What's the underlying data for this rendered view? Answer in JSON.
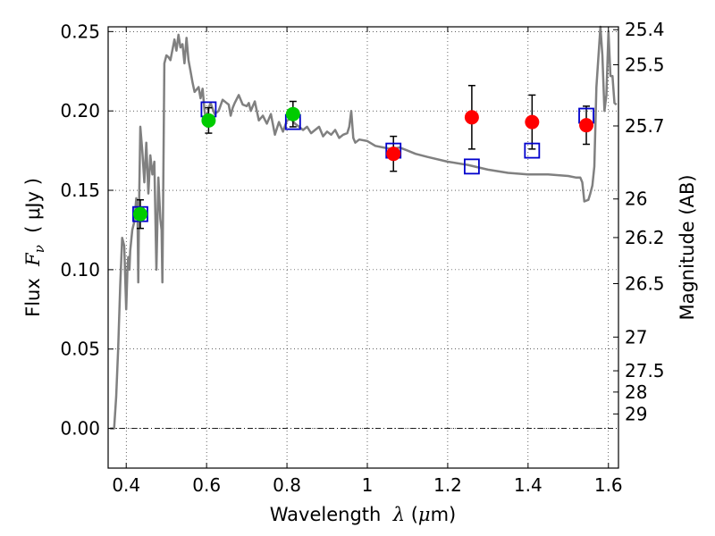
{
  "chart_data": {
    "type": "scatter",
    "xlabel": {
      "text": "Wavelength",
      "symbol": "λ",
      "unit_open": "(",
      "unit_mu": "μ",
      "unit_rest": "m)"
    },
    "ylabel": {
      "text": "Flux",
      "symbol": "F",
      "sub": "ν",
      "unit": "( μJy )"
    },
    "y2label": "Magnitude (AB)",
    "xlim": [
      0.355,
      1.625
    ],
    "ylim": [
      -0.025,
      0.253
    ],
    "grid": true,
    "xticks": [
      {
        "value": 0.4,
        "label": "0.4"
      },
      {
        "value": 0.6,
        "label": "0.6"
      },
      {
        "value": 0.8,
        "label": "0.8"
      },
      {
        "value": 1.0,
        "label": "1"
      },
      {
        "value": 1.2,
        "label": "1.2"
      },
      {
        "value": 1.4,
        "label": "1.4"
      },
      {
        "value": 1.6,
        "label": "1.6"
      }
    ],
    "yticks": [
      {
        "value": 0.0,
        "label": "0.00"
      },
      {
        "value": 0.05,
        "label": "0.05"
      },
      {
        "value": 0.1,
        "label": "0.10"
      },
      {
        "value": 0.15,
        "label": "0.15"
      },
      {
        "value": 0.2,
        "label": "0.20"
      },
      {
        "value": 0.25,
        "label": "0.25"
      }
    ],
    "y2ticks": [
      {
        "value": 25.4,
        "label": "25.4"
      },
      {
        "value": 25.5,
        "label": "25.5"
      },
      {
        "value": 25.7,
        "label": "25.7"
      },
      {
        "value": 26,
        "label": "26"
      },
      {
        "value": 26.2,
        "label": "26.2"
      },
      {
        "value": 26.5,
        "label": "26.5"
      },
      {
        "value": 27,
        "label": "27"
      },
      {
        "value": 27.5,
        "label": "27.5"
      },
      {
        "value": 28,
        "label": "28"
      },
      {
        "value": 29,
        "label": "29"
      }
    ],
    "model_spectrum": {
      "color": "#808080",
      "x": [
        0.36,
        0.37,
        0.375,
        0.38,
        0.385,
        0.39,
        0.395,
        0.4,
        0.403,
        0.405,
        0.408,
        0.41,
        0.415,
        0.42,
        0.425,
        0.428,
        0.43,
        0.432,
        0.435,
        0.44,
        0.445,
        0.45,
        0.455,
        0.46,
        0.465,
        0.47,
        0.475,
        0.48,
        0.485,
        0.488,
        0.49,
        0.495,
        0.5,
        0.505,
        0.51,
        0.52,
        0.525,
        0.53,
        0.535,
        0.54,
        0.545,
        0.55,
        0.555,
        0.56,
        0.565,
        0.57,
        0.58,
        0.585,
        0.59,
        0.595,
        0.6,
        0.605,
        0.61,
        0.62,
        0.63,
        0.64,
        0.65,
        0.655,
        0.66,
        0.665,
        0.67,
        0.68,
        0.69,
        0.7,
        0.705,
        0.71,
        0.72,
        0.73,
        0.74,
        0.75,
        0.76,
        0.77,
        0.78,
        0.79,
        0.8,
        0.81,
        0.82,
        0.83,
        0.84,
        0.85,
        0.86,
        0.87,
        0.88,
        0.89,
        0.9,
        0.91,
        0.92,
        0.93,
        0.94,
        0.95,
        0.955,
        0.96,
        0.965,
        0.97,
        0.98,
        1.0,
        1.02,
        1.04,
        1.06,
        1.08,
        1.1,
        1.12,
        1.15,
        1.2,
        1.25,
        1.3,
        1.35,
        1.4,
        1.45,
        1.5,
        1.52,
        1.53,
        1.535,
        1.54,
        1.55,
        1.555,
        1.56,
        1.565,
        1.57,
        1.58,
        1.585,
        1.59,
        1.595,
        1.6,
        1.605,
        1.61,
        1.615,
        1.62
      ],
      "y": [
        0.0,
        0.0,
        0.02,
        0.05,
        0.09,
        0.12,
        0.115,
        0.075,
        0.1,
        0.108,
        0.1,
        0.112,
        0.125,
        0.13,
        0.145,
        0.14,
        0.092,
        0.14,
        0.19,
        0.175,
        0.155,
        0.18,
        0.148,
        0.172,
        0.16,
        0.168,
        0.1,
        0.158,
        0.132,
        0.125,
        0.092,
        0.23,
        0.235,
        0.234,
        0.232,
        0.245,
        0.238,
        0.248,
        0.24,
        0.242,
        0.23,
        0.246,
        0.232,
        0.225,
        0.218,
        0.212,
        0.215,
        0.208,
        0.214,
        0.2,
        0.192,
        0.202,
        0.205,
        0.198,
        0.2,
        0.207,
        0.205,
        0.204,
        0.197,
        0.202,
        0.205,
        0.21,
        0.204,
        0.203,
        0.205,
        0.2,
        0.206,
        0.194,
        0.197,
        0.192,
        0.198,
        0.185,
        0.193,
        0.187,
        0.194,
        0.195,
        0.192,
        0.19,
        0.188,
        0.19,
        0.186,
        0.188,
        0.19,
        0.184,
        0.187,
        0.185,
        0.188,
        0.183,
        0.185,
        0.186,
        0.19,
        0.2,
        0.183,
        0.18,
        0.182,
        0.181,
        0.178,
        0.177,
        0.176,
        0.177,
        0.175,
        0.173,
        0.171,
        0.168,
        0.166,
        0.163,
        0.161,
        0.16,
        0.16,
        0.159,
        0.158,
        0.158,
        0.155,
        0.143,
        0.144,
        0.148,
        0.153,
        0.165,
        0.215,
        0.253,
        0.235,
        0.2,
        0.21,
        0.25,
        0.222,
        0.222,
        0.205,
        0.204
      ]
    },
    "series": [
      {
        "name": "",
        "marker": "circle",
        "color": "#00cc00",
        "points": [
          {
            "x": 0.435,
            "y": 0.135,
            "err": 0.009
          },
          {
            "x": 0.605,
            "y": 0.194,
            "err": 0.008
          },
          {
            "x": 0.815,
            "y": 0.198,
            "err": 0.008
          }
        ]
      },
      {
        "name": "",
        "marker": "circle",
        "color": "#ff0000",
        "points": [
          {
            "x": 1.065,
            "y": 0.173,
            "err": 0.011
          },
          {
            "x": 1.26,
            "y": 0.196,
            "err": 0.02
          },
          {
            "x": 1.41,
            "y": 0.193,
            "err": 0.017
          },
          {
            "x": 1.545,
            "y": 0.191,
            "err": 0.012
          }
        ]
      },
      {
        "name": "",
        "marker": "square",
        "color": "#0000cc",
        "points": [
          {
            "x": 0.435,
            "y": 0.135
          },
          {
            "x": 0.605,
            "y": 0.201
          },
          {
            "x": 0.815,
            "y": 0.193
          },
          {
            "x": 1.065,
            "y": 0.175
          },
          {
            "x": 1.26,
            "y": 0.165
          },
          {
            "x": 1.41,
            "y": 0.175
          },
          {
            "x": 1.545,
            "y": 0.197
          }
        ]
      }
    ]
  }
}
